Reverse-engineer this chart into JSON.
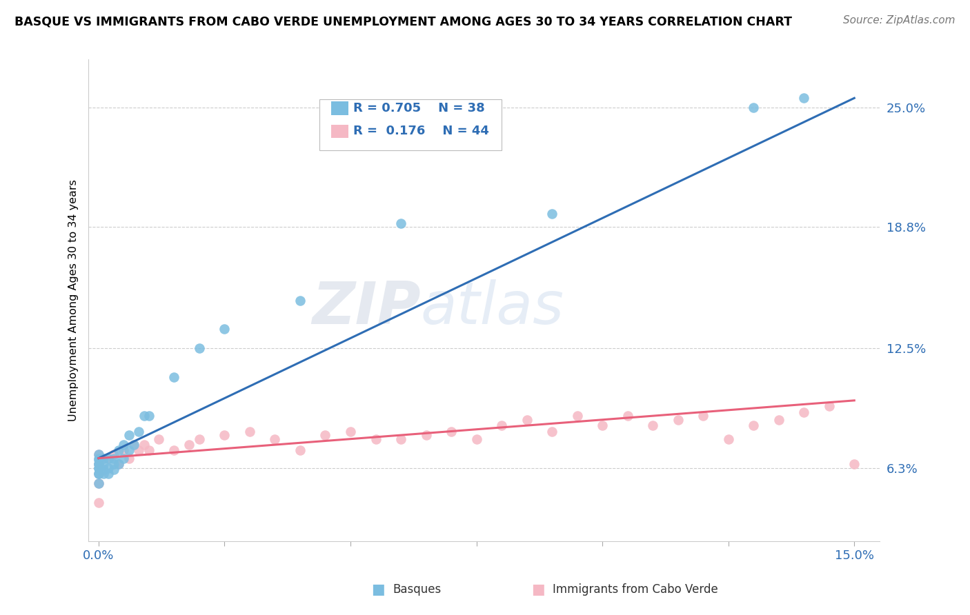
{
  "title": "BASQUE VS IMMIGRANTS FROM CABO VERDE UNEMPLOYMENT AMONG AGES 30 TO 34 YEARS CORRELATION CHART",
  "source": "Source: ZipAtlas.com",
  "xlabel_basque": "Basques",
  "xlabel_cabo": "Immigrants from Cabo Verde",
  "ylabel": "Unemployment Among Ages 30 to 34 years",
  "xlim": [
    -0.002,
    0.155
  ],
  "ylim": [
    0.025,
    0.275
  ],
  "yticks": [
    0.063,
    0.125,
    0.188,
    0.25
  ],
  "ytick_labels": [
    "6.3%",
    "12.5%",
    "18.8%",
    "25.0%"
  ],
  "legend_r_blue": "R = 0.705",
  "legend_n_blue": "N = 38",
  "legend_r_pink": "R =  0.176",
  "legend_n_pink": "N = 44",
  "blue_color": "#7bbde0",
  "pink_color": "#f5b8c4",
  "blue_line_color": "#2e6db4",
  "pink_line_color": "#e8607a",
  "watermark_zip": "ZIP",
  "watermark_atlas": "atlas",
  "basque_x": [
    0.0,
    0.0,
    0.0,
    0.0,
    0.0,
    0.0,
    0.0,
    0.0,
    0.0,
    0.0,
    0.001,
    0.001,
    0.001,
    0.001,
    0.002,
    0.002,
    0.002,
    0.003,
    0.003,
    0.003,
    0.004,
    0.004,
    0.005,
    0.005,
    0.006,
    0.006,
    0.007,
    0.008,
    0.009,
    0.01,
    0.015,
    0.02,
    0.025,
    0.04,
    0.06,
    0.09,
    0.13,
    0.14
  ],
  "basque_y": [
    0.055,
    0.06,
    0.06,
    0.063,
    0.063,
    0.065,
    0.065,
    0.067,
    0.068,
    0.07,
    0.06,
    0.062,
    0.065,
    0.068,
    0.06,
    0.063,
    0.068,
    0.062,
    0.065,
    0.068,
    0.065,
    0.072,
    0.068,
    0.075,
    0.072,
    0.08,
    0.075,
    0.082,
    0.09,
    0.09,
    0.11,
    0.125,
    0.135,
    0.15,
    0.19,
    0.195,
    0.25,
    0.255
  ],
  "cabo_x": [
    0.0,
    0.0,
    0.0,
    0.0,
    0.0,
    0.002,
    0.003,
    0.004,
    0.005,
    0.006,
    0.007,
    0.008,
    0.009,
    0.01,
    0.012,
    0.015,
    0.018,
    0.02,
    0.025,
    0.03,
    0.035,
    0.04,
    0.045,
    0.05,
    0.055,
    0.06,
    0.065,
    0.07,
    0.075,
    0.08,
    0.085,
    0.09,
    0.095,
    0.1,
    0.105,
    0.11,
    0.115,
    0.12,
    0.125,
    0.13,
    0.135,
    0.14,
    0.145,
    0.15
  ],
  "cabo_y": [
    0.045,
    0.055,
    0.06,
    0.065,
    0.07,
    0.068,
    0.07,
    0.065,
    0.072,
    0.068,
    0.075,
    0.072,
    0.075,
    0.072,
    0.078,
    0.072,
    0.075,
    0.078,
    0.08,
    0.082,
    0.078,
    0.072,
    0.08,
    0.082,
    0.078,
    0.078,
    0.08,
    0.082,
    0.078,
    0.085,
    0.088,
    0.082,
    0.09,
    0.085,
    0.09,
    0.085,
    0.088,
    0.09,
    0.078,
    0.085,
    0.088,
    0.092,
    0.095,
    0.065
  ],
  "blue_trend_x0": 0.0,
  "blue_trend_y0": 0.068,
  "blue_trend_x1": 0.15,
  "blue_trend_y1": 0.255,
  "pink_trend_x0": 0.0,
  "pink_trend_y0": 0.068,
  "pink_trend_x1": 0.15,
  "pink_trend_y1": 0.098
}
